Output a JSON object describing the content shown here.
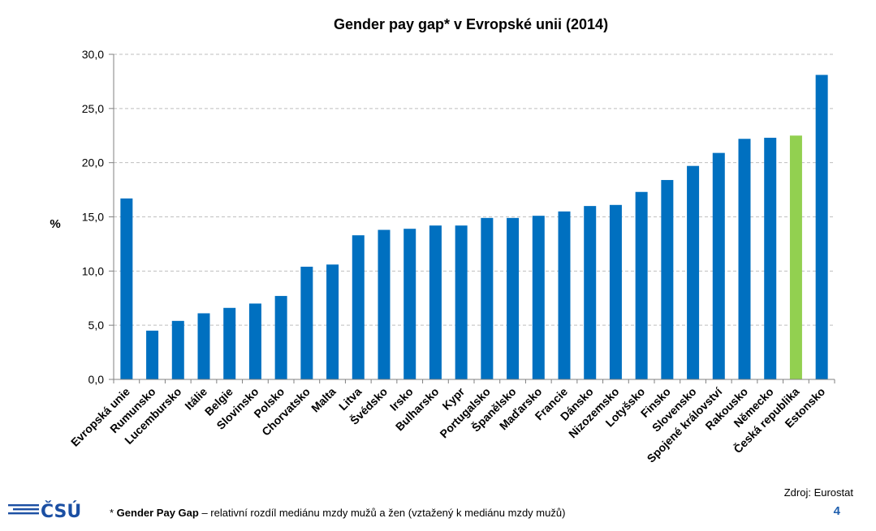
{
  "chart_data": {
    "type": "bar",
    "title": "Gender pay gap* v Evropské unii (2014)",
    "ylabel": "%",
    "xlabel": "",
    "ylim": [
      0,
      30
    ],
    "yticks": [
      "0,0",
      "5,0",
      "10,0",
      "15,0",
      "20,0",
      "25,0",
      "30,0"
    ],
    "grid": true,
    "categories": [
      "Evropská unie",
      "Rumunsko",
      "Lucembursko",
      "Itálie",
      "Belgie",
      "Slovinsko",
      "Polsko",
      "Chorvatsko",
      "Malta",
      "Litva",
      "Švédsko",
      "Irsko",
      "Bulharsko",
      "Kypr",
      "Portugalsko",
      "Španělsko",
      "Maďarsko",
      "Francie",
      "Dánsko",
      "Nizozemsko",
      "Lotyšsko",
      "Finsko",
      "Slovensko",
      "Spojené království",
      "Rakousko",
      "Německo",
      "Česká republika",
      "Estonsko"
    ],
    "values": [
      16.7,
      4.5,
      5.4,
      6.1,
      6.6,
      7.0,
      7.7,
      10.4,
      10.6,
      13.3,
      13.8,
      13.9,
      14.2,
      14.2,
      14.9,
      14.9,
      15.1,
      15.5,
      16.0,
      16.1,
      17.3,
      18.4,
      19.7,
      20.9,
      22.2,
      22.3,
      22.5,
      28.1
    ],
    "highlight_category": "Česká republika",
    "colors": {
      "bar": "#0070c0",
      "highlight": "#92d050",
      "grid": "#bfbfbf"
    }
  },
  "source": "Zdroj: Eurostat",
  "footnote": {
    "prefix": "* ",
    "term": "Gender Pay Gap",
    "text": " – relativní rozdíl mediánu mzdy mužů a žen (vztažený k mediánu mzdy mužů)"
  },
  "page_number": "4",
  "logo": {
    "text": "ČSÚ",
    "icon": "csu-logo-icon",
    "color": "#1b4fa3"
  }
}
